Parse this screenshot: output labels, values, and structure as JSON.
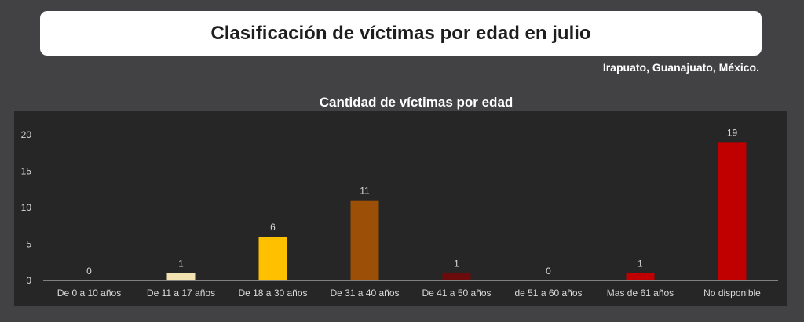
{
  "header": {
    "title": "Clasificación de víctimas por edad en julio",
    "location": "Irapuato, Guanajuato, México."
  },
  "chart_data": {
    "type": "bar",
    "title": "Cantidad de víctimas por edad",
    "xlabel": "",
    "ylabel": "",
    "ylim": [
      0,
      20
    ],
    "yticks": [
      0,
      5,
      10,
      15,
      20
    ],
    "grid": false,
    "legend": "none",
    "categories": [
      "De 0 a 10 años",
      "De 11 a 17 años",
      "De 18 a 30 años",
      "De 31 a 40 años",
      "De 41 a 50 años",
      "de 51 a 60 años",
      "Mas de 61 años",
      "No disponible"
    ],
    "values": [
      0,
      1,
      6,
      11,
      1,
      0,
      1,
      19
    ],
    "colors": [
      "#c9c9c9",
      "#f3e3b0",
      "#ffc000",
      "#9c4f06",
      "#6b0b0b",
      "#9a9a9a",
      "#c00000",
      "#c00000"
    ]
  }
}
